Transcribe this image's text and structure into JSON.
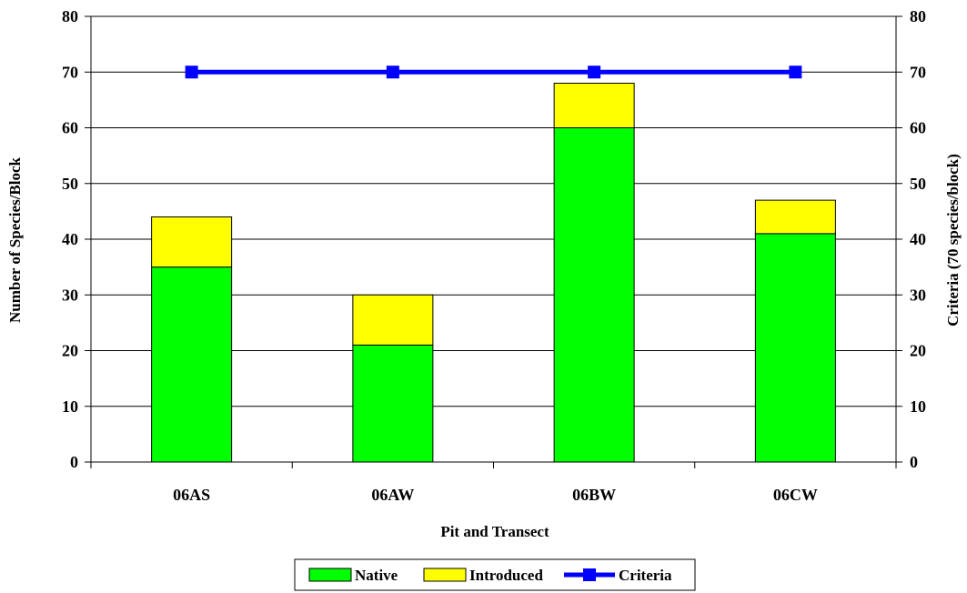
{
  "chart_data": {
    "type": "bar",
    "stacked": true,
    "categories": [
      "06AS",
      "06AW",
      "06BW",
      "06CW"
    ],
    "series": [
      {
        "name": "Native",
        "kind": "bar",
        "color": "#00ff00",
        "values": [
          35,
          21,
          60,
          41
        ]
      },
      {
        "name": "Introduced",
        "kind": "bar",
        "color": "#ffff00",
        "values": [
          9,
          9,
          8,
          6
        ]
      },
      {
        "name": "Criteria",
        "kind": "line",
        "axis": "right",
        "color": "#0000ff",
        "values": [
          70,
          70,
          70,
          70
        ]
      }
    ],
    "xlabel": "Pit and Transect",
    "ylabel": "Number of Species/Block",
    "y2label": "Criteria (70 species/block)",
    "ylim": [
      0,
      80
    ],
    "y2lim": [
      0,
      80
    ],
    "yticks": [
      0,
      10,
      20,
      30,
      40,
      50,
      60,
      70,
      80
    ],
    "y2ticks": [
      0,
      10,
      20,
      30,
      40,
      50,
      60,
      70,
      80
    ],
    "grid": true,
    "legend": "bottom"
  }
}
